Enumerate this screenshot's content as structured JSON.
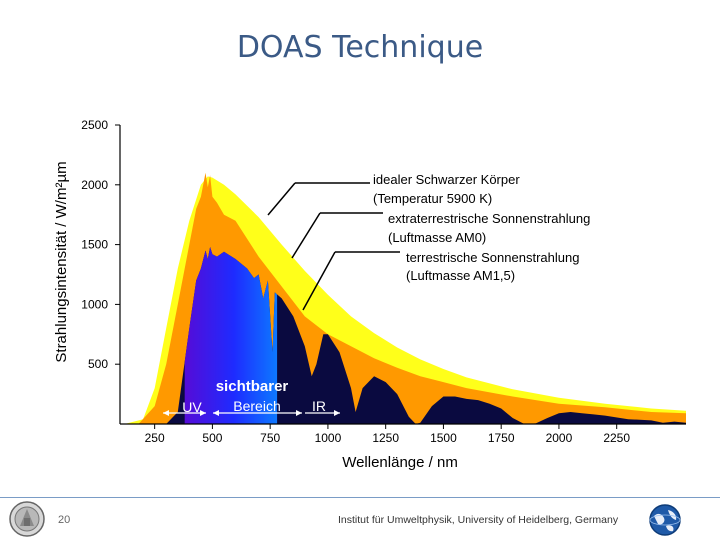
{
  "slide": {
    "title": "DOAS Technique",
    "page_number": "20",
    "institute": "Institut für Umweltphysik, University of Heidelberg, Germany"
  },
  "colors": {
    "blackbody": "#ffff1a",
    "extraterrestrial": "#ff9900",
    "terrestrial": "#0a0a40",
    "axis": "#000000",
    "title": "#3b5a86"
  },
  "chart_data": {
    "type": "area",
    "ylabel": "Strahlungsintensität  /  W/m²µm",
    "xlabel": "Wellenlänge  /  nm",
    "xlim": [
      100,
      2550
    ],
    "ylim": [
      0,
      2500
    ],
    "x_ticks": [
      250,
      500,
      750,
      1000,
      1250,
      1500,
      1750,
      2000,
      2250
    ],
    "y_ticks": [
      500,
      1000,
      1500,
      2000,
      2500
    ],
    "series": [
      {
        "name": "idealer Schwarzer Körper (Temperatur 5900 K)",
        "x": [
          120,
          200,
          250,
          300,
          350,
          400,
          450,
          480,
          500,
          550,
          600,
          700,
          800,
          900,
          1000,
          1100,
          1200,
          1300,
          1400,
          1500,
          1600,
          1800,
          2000,
          2200,
          2400,
          2550
        ],
        "values": [
          0,
          40,
          300,
          800,
          1300,
          1700,
          2000,
          2070,
          2060,
          2000,
          1920,
          1730,
          1500,
          1280,
          1080,
          900,
          760,
          640,
          540,
          460,
          390,
          290,
          220,
          170,
          130,
          110
        ]
      },
      {
        "name": "extraterrestrische Sonnenstrahlung (Luftmasse AM0)",
        "x": [
          180,
          250,
          300,
          350,
          400,
          430,
          450,
          470,
          480,
          490,
          500,
          520,
          550,
          600,
          700,
          800,
          900,
          1000,
          1100,
          1200,
          1300,
          1400,
          1500,
          1600,
          1800,
          2000,
          2200,
          2400,
          2550
        ],
        "values": [
          0,
          150,
          500,
          1000,
          1500,
          1800,
          1900,
          2100,
          1980,
          2080,
          1900,
          1850,
          1750,
          1700,
          1400,
          1150,
          900,
          750,
          650,
          550,
          470,
          400,
          350,
          300,
          230,
          170,
          140,
          100,
          90
        ]
      },
      {
        "name": "terrestrische Sonnenstrahlung (Luftmasse AM1,5)",
        "x": [
          300,
          350,
          400,
          430,
          450,
          470,
          480,
          490,
          500,
          520,
          550,
          600,
          650,
          680,
          700,
          720,
          740,
          760,
          770,
          800,
          850,
          900,
          930,
          950,
          980,
          1000,
          1050,
          1100,
          1120,
          1150,
          1200,
          1250,
          1300,
          1350,
          1380,
          1400,
          1450,
          1500,
          1550,
          1600,
          1650,
          1700,
          1750,
          1800,
          1850,
          1900,
          1950,
          2000,
          2050,
          2100,
          2150,
          2200,
          2300,
          2400,
          2450,
          2500,
          2550
        ],
        "values": [
          0,
          100,
          800,
          1200,
          1300,
          1450,
          1380,
          1480,
          1420,
          1400,
          1440,
          1380,
          1300,
          1220,
          1250,
          1050,
          1200,
          600,
          1100,
          1050,
          900,
          650,
          400,
          500,
          750,
          750,
          600,
          300,
          100,
          300,
          400,
          350,
          250,
          60,
          0,
          10,
          150,
          230,
          230,
          210,
          200,
          170,
          130,
          50,
          0,
          5,
          50,
          90,
          100,
          90,
          80,
          70,
          40,
          30,
          10,
          20,
          10
        ]
      }
    ],
    "annotations": [
      {
        "line1": "idealer Schwarzer Körper",
        "line2": "(Temperatur 5900 K)"
      },
      {
        "line1": "extraterrestrische Sonnenstrahlung",
        "line2": "(Luftmasse AM0)"
      },
      {
        "line1": "terrestrische Sonnenstrahlung",
        "line2": "(Luftmasse AM1,5)"
      }
    ],
    "regions": {
      "uv": "UV",
      "visible_line1": "sichtbarer",
      "visible_line2": "Bereich",
      "ir": "IR"
    }
  }
}
